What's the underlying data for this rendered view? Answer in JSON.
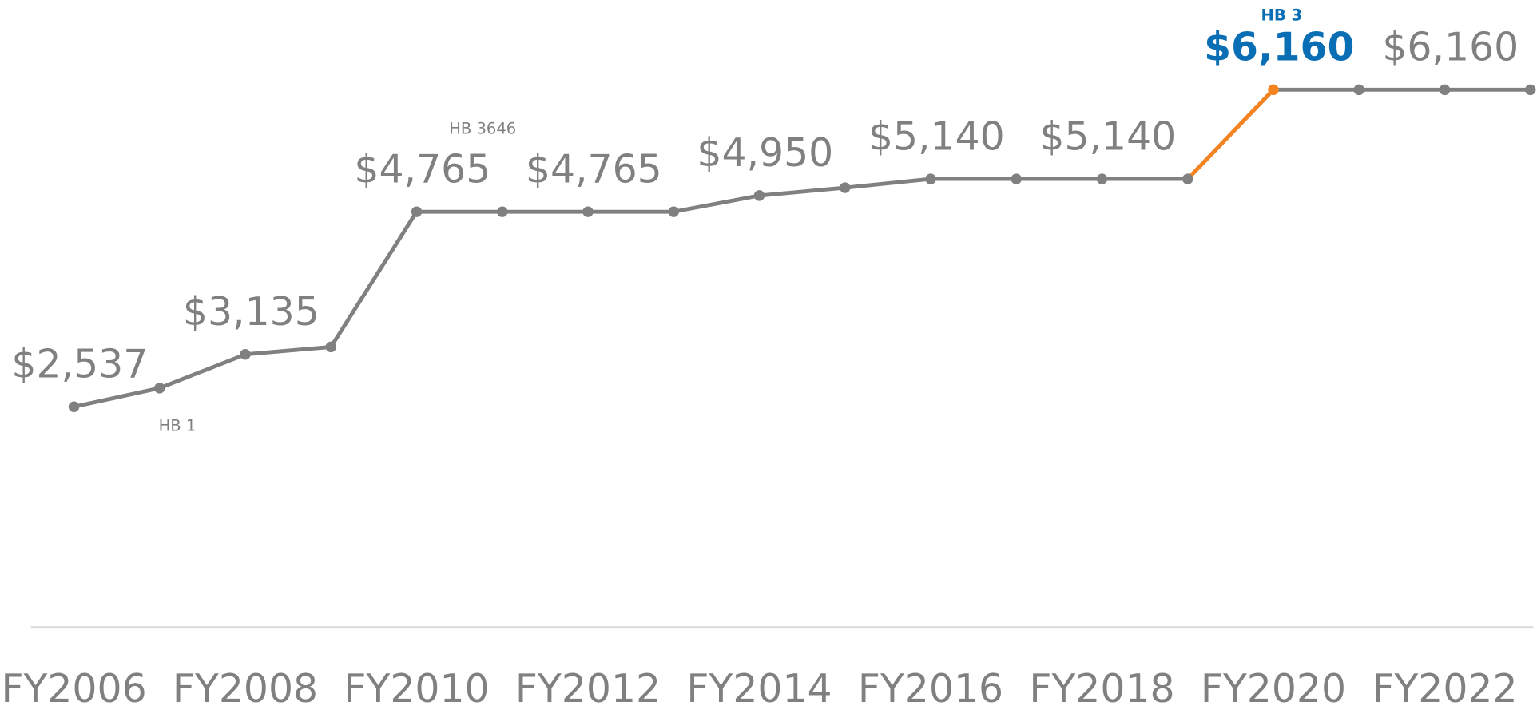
{
  "chart_data": {
    "type": "line",
    "categories": [
      "FY2006",
      null,
      "FY2008",
      null,
      "FY2010",
      null,
      "FY2012",
      null,
      "FY2014",
      null,
      "FY2016",
      null,
      "FY2018",
      null,
      "FY2020",
      null,
      "FY2022",
      null
    ],
    "series": [
      {
        "name": "Amount",
        "color": "#808080",
        "values": [
          2537,
          2750,
          3135,
          3220,
          4765,
          4765,
          4765,
          4765,
          4950,
          5040,
          5140,
          5140,
          5140,
          5140,
          6160,
          6160,
          6160,
          6160
        ],
        "value_labels": [
          "$2,537",
          null,
          "$3,135",
          null,
          "$4,765",
          null,
          "$4,765",
          null,
          "$4,950",
          null,
          "$5,140",
          null,
          "$5,140",
          null,
          "$6,160",
          null,
          "$6,160",
          null
        ]
      }
    ],
    "highlight": "FY2020",
    "highlight_color": "#f5831f",
    "highlight_label_color": "#0a6eb4",
    "annotations": [
      "HB 1",
      "HB 3646",
      "HB 3"
    ]
  }
}
